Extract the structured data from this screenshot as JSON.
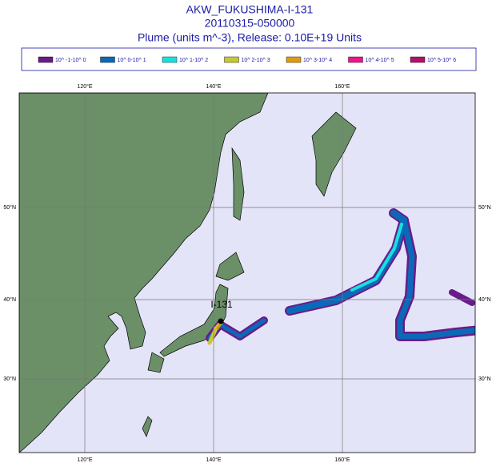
{
  "header": {
    "title": "AKW_FUKUSHIMA-I-131",
    "datetime": "20110315-050000",
    "subtitle": "Plume (units m^-3), Release:  0.10E+19 Units"
  },
  "legend": [
    {
      "label": "10^ -1-10^ 0",
      "color": "#6a1b8a"
    },
    {
      "label": "10^ 0-10^ 1",
      "color": "#0a6ab8"
    },
    {
      "label": "10^ 1-10^ 2",
      "color": "#19e0e0"
    },
    {
      "label": "10^ 2-10^ 3",
      "color": "#c8c832"
    },
    {
      "label": "10^ 3-10^ 4",
      "color": "#e09a10"
    },
    {
      "label": "10^ 4-10^ 5",
      "color": "#f0148c"
    },
    {
      "label": "10^ 5-10^ 6",
      "color": "#b4106c"
    }
  ],
  "map": {
    "lon_labels_top": [
      "120°E",
      "140°E",
      "160°E"
    ],
    "lon_labels_bottom": [
      "120°E",
      "140°E",
      "160°E"
    ],
    "lat_labels_left": [
      "50°N",
      "40°N",
      "30°N"
    ],
    "lat_labels_right": [
      "50°N",
      "40°N",
      "30°N"
    ],
    "source_label": "I-131"
  }
}
